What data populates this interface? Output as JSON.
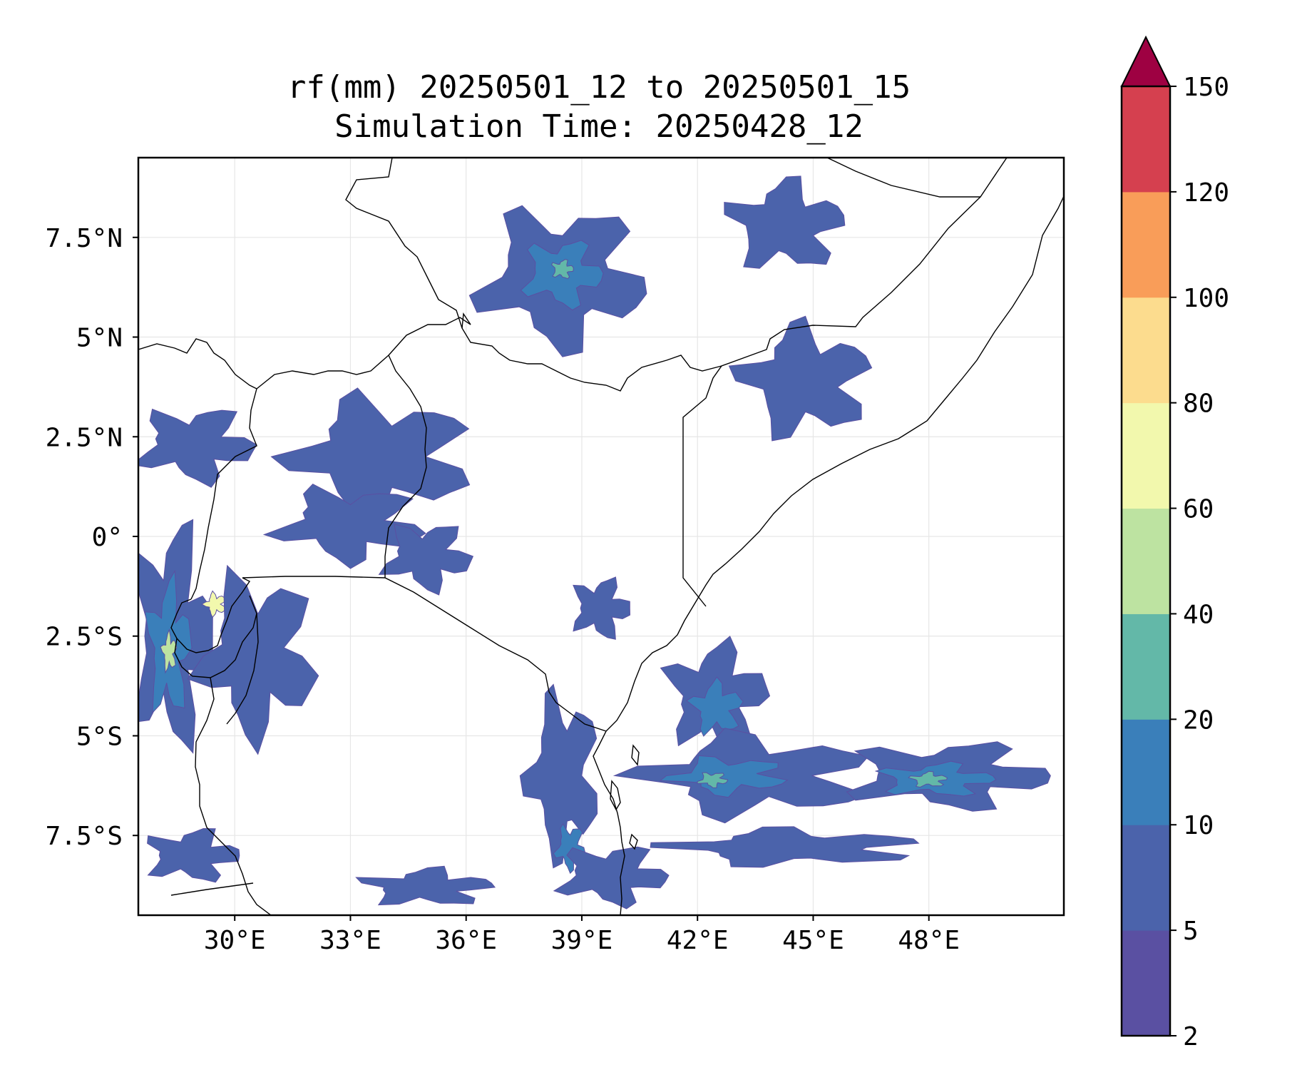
{
  "title": {
    "line1": "rf(mm) 20250501_12 to 20250501_15",
    "line2": "Simulation Time: 20250428_12"
  },
  "map": {
    "lon_range": [
      27.5,
      51.5
    ],
    "lat_range": [
      -9.5,
      9.5
    ],
    "gridlines": true,
    "lon_ticks": [
      {
        "value": 30,
        "label": "30°E"
      },
      {
        "value": 33,
        "label": "33°E"
      },
      {
        "value": 36,
        "label": "36°E"
      },
      {
        "value": 39,
        "label": "39°E"
      },
      {
        "value": 42,
        "label": "42°E"
      },
      {
        "value": 45,
        "label": "45°E"
      },
      {
        "value": 48,
        "label": "48°E"
      }
    ],
    "lat_ticks": [
      {
        "value": 7.5,
        "label": "7.5°N"
      },
      {
        "value": 5,
        "label": "5°N"
      },
      {
        "value": 2.5,
        "label": "2.5°N"
      },
      {
        "value": 0,
        "label": "0°"
      },
      {
        "value": -2.5,
        "label": "2.5°S"
      },
      {
        "value": -5,
        "label": "5°S"
      },
      {
        "value": -7.5,
        "label": "7.5°S"
      }
    ],
    "rain_areas": [
      {
        "lon": 38.5,
        "lat": 6.5,
        "rx": 2.3,
        "ry": 1.9,
        "level": 1
      },
      {
        "lon": 38.5,
        "lat": 6.6,
        "rx": 1.1,
        "ry": 0.9,
        "level": 2
      },
      {
        "lon": 38.5,
        "lat": 6.7,
        "rx": 0.3,
        "ry": 0.25,
        "level": 3
      },
      {
        "lon": 44.3,
        "lat": 7.8,
        "rx": 1.6,
        "ry": 1.2,
        "level": 1
      },
      {
        "lon": 44.8,
        "lat": 3.9,
        "rx": 1.8,
        "ry": 1.5,
        "level": 1
      },
      {
        "lon": 33.8,
        "lat": 2.0,
        "rx": 2.5,
        "ry": 1.6,
        "level": 1
      },
      {
        "lon": 33.0,
        "lat": 0.3,
        "rx": 2.0,
        "ry": 1.0,
        "level": 1
      },
      {
        "lon": 29.0,
        "lat": 2.3,
        "rx": 1.6,
        "ry": 1.0,
        "level": 1
      },
      {
        "lon": 28.4,
        "lat": -2.5,
        "rx": 1.1,
        "ry": 3.0,
        "level": 1
      },
      {
        "lon": 28.3,
        "lat": -2.8,
        "rx": 0.6,
        "ry": 1.8,
        "level": 2
      },
      {
        "lon": 28.3,
        "lat": -2.9,
        "rx": 0.2,
        "ry": 0.5,
        "level": 4
      },
      {
        "lon": 29.5,
        "lat": -1.7,
        "rx": 0.3,
        "ry": 0.3,
        "level": 5
      },
      {
        "lon": 30.6,
        "lat": -3.0,
        "rx": 1.6,
        "ry": 2.2,
        "level": 1
      },
      {
        "lon": 35.0,
        "lat": -0.5,
        "rx": 1.2,
        "ry": 0.9,
        "level": 1
      },
      {
        "lon": 39.5,
        "lat": -1.8,
        "rx": 0.8,
        "ry": 0.8,
        "level": 1
      },
      {
        "lon": 42.5,
        "lat": -4.0,
        "rx": 1.4,
        "ry": 1.4,
        "level": 1
      },
      {
        "lon": 42.5,
        "lat": -4.3,
        "rx": 0.7,
        "ry": 0.7,
        "level": 2
      },
      {
        "lon": 43.5,
        "lat": -6.0,
        "rx": 3.2,
        "ry": 1.1,
        "level": 1
      },
      {
        "lon": 42.8,
        "lat": -6.0,
        "rx": 1.6,
        "ry": 0.5,
        "level": 2
      },
      {
        "lon": 42.4,
        "lat": -6.1,
        "rx": 0.4,
        "ry": 0.2,
        "level": 3
      },
      {
        "lon": 48.5,
        "lat": -6.0,
        "rx": 2.8,
        "ry": 0.9,
        "level": 1
      },
      {
        "lon": 48.2,
        "lat": -6.1,
        "rx": 1.6,
        "ry": 0.45,
        "level": 2
      },
      {
        "lon": 48.0,
        "lat": -6.1,
        "rx": 0.5,
        "ry": 0.2,
        "level": 3
      },
      {
        "lon": 44.5,
        "lat": -7.8,
        "rx": 3.5,
        "ry": 0.5,
        "level": 1
      },
      {
        "lon": 38.5,
        "lat": -6.0,
        "rx": 1.0,
        "ry": 2.2,
        "level": 1
      },
      {
        "lon": 38.7,
        "lat": -7.8,
        "rx": 0.4,
        "ry": 0.6,
        "level": 2
      },
      {
        "lon": 39.8,
        "lat": -8.5,
        "rx": 1.5,
        "ry": 0.8,
        "level": 1
      },
      {
        "lon": 28.9,
        "lat": -8.0,
        "rx": 1.3,
        "ry": 0.7,
        "level": 1
      },
      {
        "lon": 35.0,
        "lat": -8.8,
        "rx": 1.8,
        "ry": 0.5,
        "level": 1
      }
    ]
  },
  "colorbar": {
    "levels": [
      2,
      5,
      10,
      20,
      40,
      60,
      80,
      100,
      120,
      150
    ],
    "tick_labels": [
      "2",
      "5",
      "10",
      "20",
      "40",
      "60",
      "80",
      "100",
      "120",
      "150"
    ],
    "colors": [
      "#5a50a2",
      "#4b63ab",
      "#3a7fba",
      "#63b8a8",
      "#bde3a1",
      "#f2f8ad",
      "#fcdc8e",
      "#f99d59",
      "#d5404f"
    ],
    "extend_color": "#9e0142"
  }
}
